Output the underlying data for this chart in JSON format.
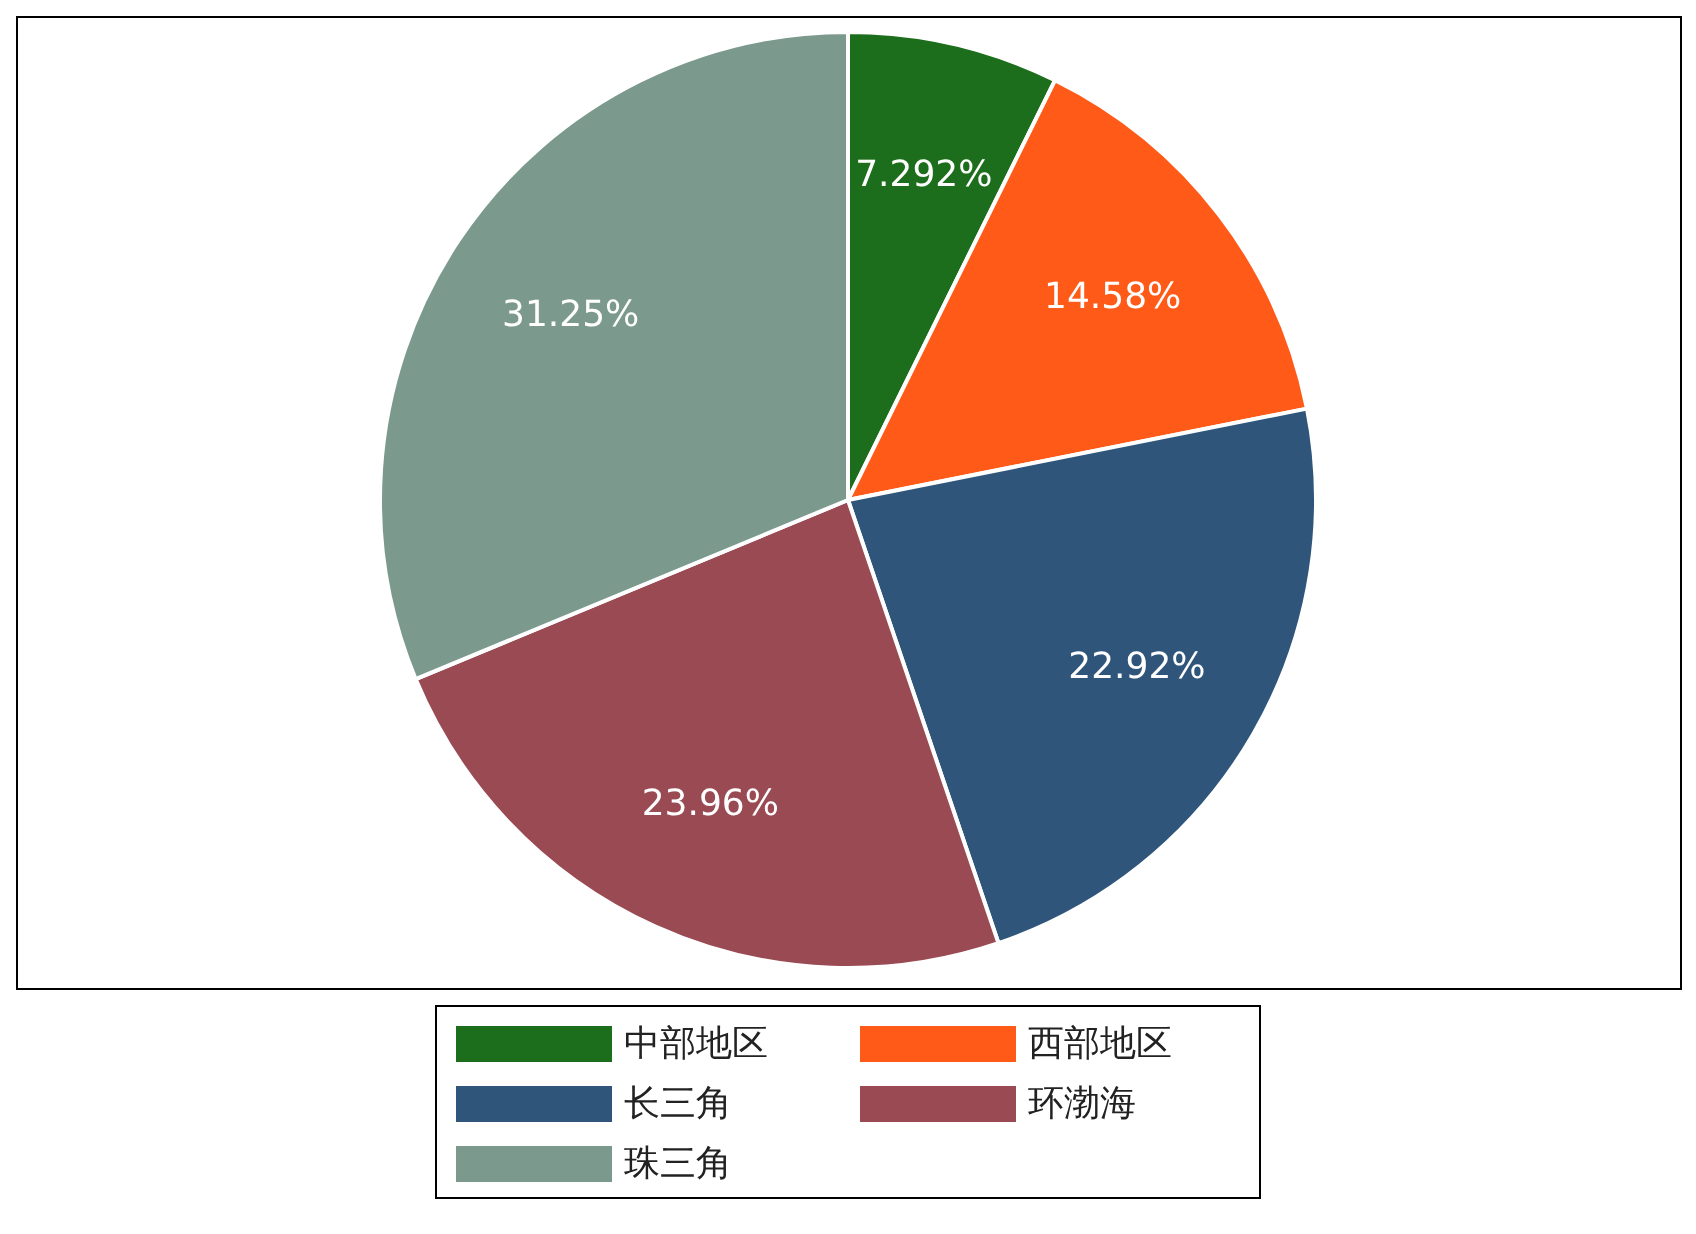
{
  "chart_data": {
    "type": "pie",
    "categories": [
      "中部地区",
      "西部地区",
      "长三角",
      "环渤海",
      "珠三角"
    ],
    "values": [
      7.292,
      14.58,
      22.92,
      23.96,
      31.25
    ],
    "colors": [
      "#1c6e1c",
      "#ff5a18",
      "#2f557b",
      "#9a4a53",
      "#7b9a8d"
    ],
    "value_labels": [
      "7.292%",
      "14.58%",
      "22.92%",
      "23.96%",
      "31.25%"
    ],
    "legend": "bottom"
  }
}
